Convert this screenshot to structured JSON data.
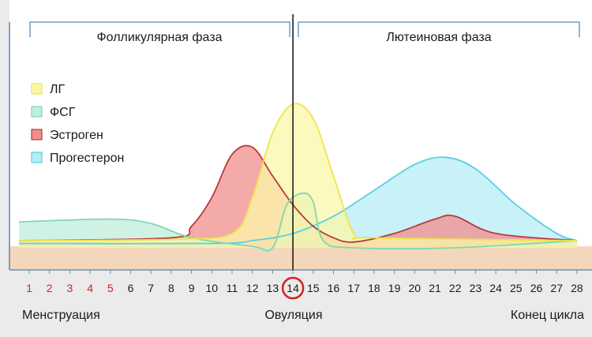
{
  "chart_data": {
    "type": "area",
    "phases": [
      {
        "label": "Фолликулярная фаза"
      },
      {
        "label": "Лютеиновая фаза"
      }
    ],
    "x": [
      1,
      2,
      3,
      4,
      5,
      6,
      7,
      8,
      9,
      10,
      11,
      12,
      13,
      14,
      15,
      16,
      17,
      18,
      19,
      20,
      21,
      22,
      23,
      24,
      25,
      26,
      27,
      28
    ],
    "highlight_days": [
      1,
      2,
      3,
      4,
      5
    ],
    "ovulation_day": 14,
    "bottom_labels": {
      "left": "Менструация",
      "center": "Овуляция",
      "right": "Конец цикла"
    },
    "series": [
      {
        "name": "ЛГ",
        "stroke": "#f0e44a",
        "fill": "#fbf7a8",
        "points": [
          [
            0.5,
            0.05
          ],
          [
            8,
            0.06
          ],
          [
            11,
            0.1
          ],
          [
            12,
            0.35
          ],
          [
            13,
            0.8
          ],
          [
            14,
            1.0
          ],
          [
            15,
            0.9
          ],
          [
            16,
            0.5
          ],
          [
            17,
            0.1
          ],
          [
            18,
            0.07
          ],
          [
            28,
            0.05
          ]
        ]
      },
      {
        "name": "ФСГ",
        "stroke": "#7fd9ad",
        "fill": "#bfeedb",
        "points": [
          [
            0.5,
            0.18
          ],
          [
            5,
            0.2
          ],
          [
            7,
            0.17
          ],
          [
            9,
            0.07
          ],
          [
            12,
            0.01
          ],
          [
            13,
            0.0
          ],
          [
            13.7,
            0.3
          ],
          [
            14.5,
            0.38
          ],
          [
            15,
            0.32
          ],
          [
            15.5,
            0.05
          ],
          [
            17,
            0.0
          ],
          [
            22,
            0.0
          ],
          [
            28,
            0.05
          ]
        ]
      },
      {
        "name": "Эстроген",
        "stroke": "#b83a3a",
        "fill": "#f28e8e",
        "points": [
          [
            0.5,
            0.05
          ],
          [
            8,
            0.07
          ],
          [
            9,
            0.15
          ],
          [
            10,
            0.35
          ],
          [
            11,
            0.65
          ],
          [
            12,
            0.7
          ],
          [
            13,
            0.5
          ],
          [
            14,
            0.3
          ],
          [
            15,
            0.15
          ],
          [
            16,
            0.07
          ],
          [
            17,
            0.04
          ],
          [
            19,
            0.1
          ],
          [
            21,
            0.2
          ],
          [
            22,
            0.22
          ],
          [
            24,
            0.1
          ],
          [
            28,
            0.05
          ]
        ]
      },
      {
        "name": "Прогестерон",
        "stroke": "#5bcfe0",
        "fill": "#b6ecf5",
        "points": [
          [
            0.5,
            0.03
          ],
          [
            10,
            0.03
          ],
          [
            12,
            0.05
          ],
          [
            14,
            0.1
          ],
          [
            16,
            0.22
          ],
          [
            18,
            0.4
          ],
          [
            20,
            0.58
          ],
          [
            21.5,
            0.63
          ],
          [
            23,
            0.55
          ],
          [
            25,
            0.3
          ],
          [
            27,
            0.1
          ],
          [
            28,
            0.05
          ]
        ]
      }
    ],
    "y_range": [
      0,
      1
    ]
  }
}
